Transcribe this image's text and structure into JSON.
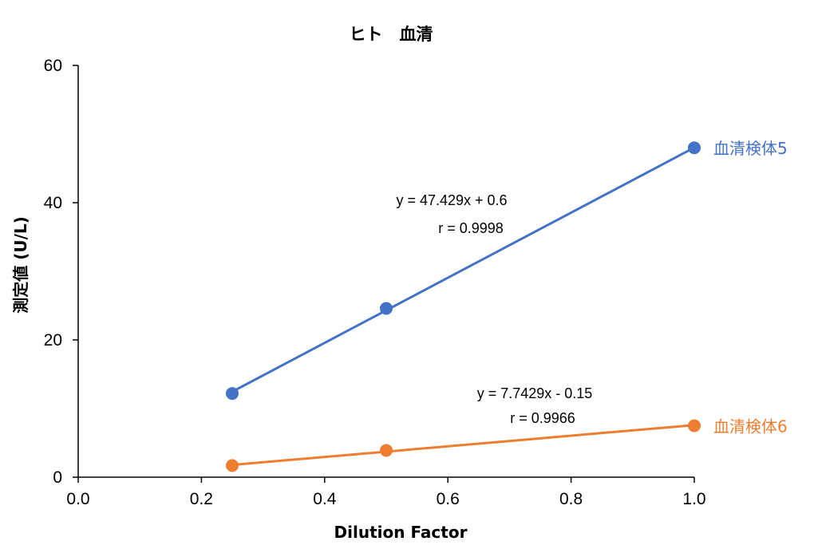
{
  "chart_data": {
    "type": "scatter",
    "title": "ヒト　血清",
    "xlabel": "Dilution Factor",
    "ylabel": "測定値 (U/L)",
    "xlim": [
      0,
      1.0
    ],
    "ylim": [
      0,
      60
    ],
    "xticks": [
      "0.0",
      "0.2",
      "0.4",
      "0.6",
      "0.8",
      "1.0"
    ],
    "yticks": [
      "0",
      "20",
      "40",
      "60"
    ],
    "grid": false,
    "legend": "none",
    "series": [
      {
        "name": "血清検体5",
        "color": "#4472C4",
        "x": [
          0.25,
          0.5,
          1.0
        ],
        "y": [
          12.2,
          24.6,
          48.0
        ],
        "trendline": {
          "slope": 47.429,
          "intercept": 0.6
        },
        "equation": "y = 47.429x + 0.6",
        "r": "r = 0.9998"
      },
      {
        "name": "血清検体6",
        "color": "#ED7D31",
        "x": [
          0.25,
          0.5,
          1.0
        ],
        "y": [
          1.7,
          3.9,
          7.5
        ],
        "trendline": {
          "slope": 7.7429,
          "intercept": -0.15
        },
        "equation": "y = 7.7429x - 0.15",
        "r": "r = 0.9966"
      }
    ]
  }
}
